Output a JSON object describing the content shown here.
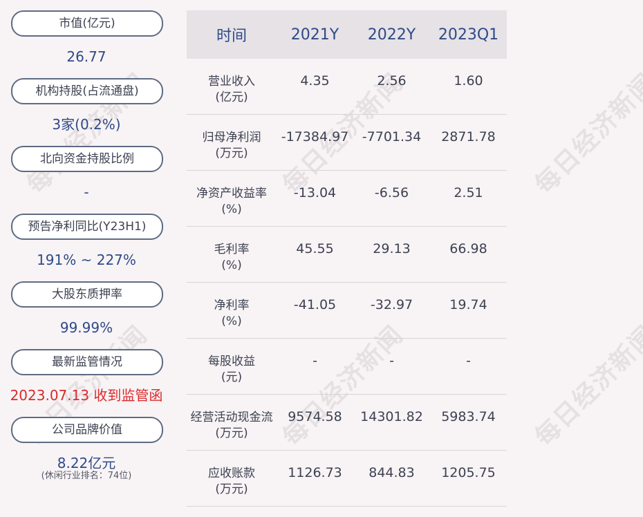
{
  "left_panel": [
    {
      "label": "市值(亿元)",
      "value": "26.77",
      "value_color": "#2e4a87"
    },
    {
      "label": "机构持股(占流通盘)",
      "value": "3家(0.2%)",
      "value_color": "#2e4a87"
    },
    {
      "label": "北向资金持股比例",
      "value": "-",
      "value_color": "#2e4a87"
    },
    {
      "label": "预告净利同比(Y23H1)",
      "value": "191% ~ 227%",
      "value_color": "#2e4a87"
    },
    {
      "label": "大股东质押率",
      "value": "99.99%",
      "value_color": "#2e4a87"
    },
    {
      "label": "最新监管情况",
      "value": "2023.07.13 收到监管函",
      "value_color": "#d92a2a"
    },
    {
      "label": "公司品牌价值",
      "value": "8.22亿元",
      "value_color": "#2e4a87",
      "note": "(休闲行业排名：74位)"
    }
  ],
  "table": {
    "headers": [
      "时间",
      "2021Y",
      "2022Y",
      "2023Q1"
    ],
    "rows": [
      {
        "label1": "营业收入",
        "label2": "(亿元)",
        "values": [
          "4.35",
          "2.56",
          "1.60"
        ]
      },
      {
        "label1": "归母净利润",
        "label2": "(万元)",
        "values": [
          "-17384.97",
          "-7701.34",
          "2871.78"
        ]
      },
      {
        "label1": "净资产收益率",
        "label2": "(%)",
        "values": [
          "-13.04",
          "-6.56",
          "2.51"
        ]
      },
      {
        "label1": "毛利率",
        "label2": "(%)",
        "values": [
          "45.55",
          "29.13",
          "66.98"
        ]
      },
      {
        "label1": "净利率",
        "label2": "(%)",
        "values": [
          "-41.05",
          "-32.97",
          "19.74"
        ]
      },
      {
        "label1": "每股收益",
        "label2": "(元)",
        "values": [
          "-",
          "-",
          "-"
        ]
      },
      {
        "label1": "经营活动现金流",
        "label2": "(万元)",
        "values": [
          "9574.58",
          "14301.82",
          "5983.74"
        ]
      },
      {
        "label1": "应收账款",
        "label2": "(万元)",
        "values": [
          "1126.73",
          "844.83",
          "1205.75"
        ]
      }
    ]
  },
  "watermark": "每日经济新闻"
}
